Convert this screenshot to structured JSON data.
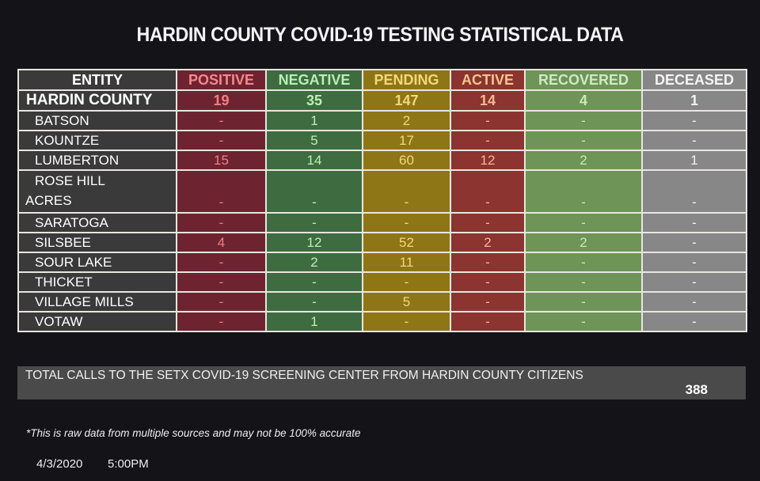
{
  "title": "HARDIN COUNTY COVID-19 TESTING STATISTICAL DATA",
  "colors": {
    "background": "#141318",
    "entity": "#3a3a3a",
    "positive": "#6d2430",
    "negative": "#3f6b41",
    "pending": "#8e7617",
    "active": "#8b3430",
    "recovered": "#6e9458",
    "deceased": "#878787"
  },
  "table": {
    "headers": [
      "ENTITY",
      "POSITIVE",
      "NEGATIVE",
      "PENDING",
      "ACTIVE",
      "RECOVERED",
      "DECEASED"
    ],
    "county": {
      "entity": "HARDIN COUNTY",
      "values": [
        "19",
        "35",
        "147",
        "14",
        "4",
        "1"
      ]
    },
    "rows": [
      {
        "entity": "BATSON",
        "values": [
          "-",
          "1",
          "2",
          "-",
          "-",
          "-"
        ]
      },
      {
        "entity": "KOUNTZE",
        "values": [
          "-",
          "5",
          "17",
          "-",
          "-",
          "-"
        ]
      },
      {
        "entity": "LUMBERTON",
        "values": [
          "15",
          "14",
          "60",
          "12",
          "2",
          "1"
        ]
      },
      {
        "entity_line1": "ROSE HILL",
        "entity_line2": "ACRES",
        "values": [
          "-",
          "-",
          "-",
          "-",
          "-",
          "-"
        ]
      },
      {
        "entity": "SARATOGA",
        "values": [
          "-",
          "-",
          "-",
          "-",
          "-",
          "-"
        ]
      },
      {
        "entity": "SILSBEE",
        "values": [
          "4",
          "12",
          "52",
          "2",
          "2",
          "-"
        ]
      },
      {
        "entity": "SOUR LAKE",
        "values": [
          "-",
          "2",
          "11",
          "-",
          "-",
          "-"
        ]
      },
      {
        "entity": "THICKET",
        "values": [
          "-",
          "-",
          "-",
          "-",
          "-",
          "-"
        ]
      },
      {
        "entity": "VILLAGE MILLS",
        "values": [
          "-",
          "-",
          "5",
          "-",
          "-",
          "-"
        ]
      },
      {
        "entity": "VOTAW",
        "values": [
          "-",
          "1",
          "-",
          "-",
          "-",
          "-"
        ]
      }
    ]
  },
  "calls": {
    "label": "TOTAL CALLS TO THE SETX COVID-19 SCREENING CENTER FROM HARDIN COUNTY CITIZENS",
    "value": "388"
  },
  "note": "*This is raw data from multiple sources and may not be 100% accurate",
  "date": "4/3/2020",
  "time": "5:00PM"
}
